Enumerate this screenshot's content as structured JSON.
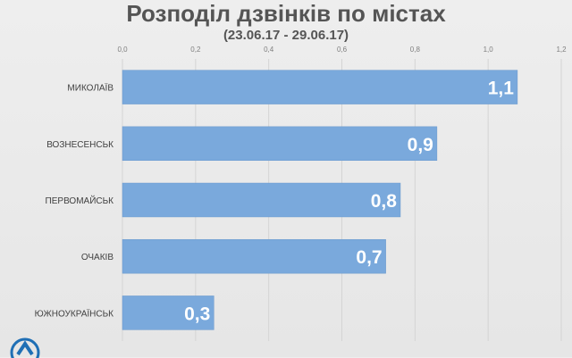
{
  "chart_data": {
    "type": "bar",
    "orientation": "horizontal",
    "title": "Розподіл дзвінків по містах",
    "subtitle": "(23.06.17 - 29.06.17)",
    "categories": [
      "МИКОЛАЇВ",
      "ВОЗНЕСЕНСЬК",
      "ПЕРВОМАЙСЬК",
      "ОЧАКІВ",
      "ЮЖНОУКРАЇНСЬК"
    ],
    "values": [
      1.08,
      0.86,
      0.76,
      0.72,
      0.25
    ],
    "data_labels": [
      "1,1",
      "0,9",
      "0,8",
      "0,7",
      "0,3"
    ],
    "xlim": [
      0,
      1.2
    ],
    "ticks": [
      0,
      0.2,
      0.4,
      0.6,
      0.8,
      1.0,
      1.2
    ],
    "tick_labels": [
      "0,0",
      "0,2",
      "0,4",
      "0,6",
      "0,8",
      "1,0",
      "1,2"
    ],
    "axis_position": "top",
    "grid": true,
    "bar_color": "#7aa9dc",
    "bar_edge_color": "#6a98cb",
    "label_color": "#ffffff"
  },
  "colors": {
    "grid": "#d4d4d4",
    "tick_text": "#7f7f7f",
    "category_text": "#404040",
    "logo": "#1f6fb5"
  },
  "logo": {
    "icon": "company-logo-icon"
  }
}
